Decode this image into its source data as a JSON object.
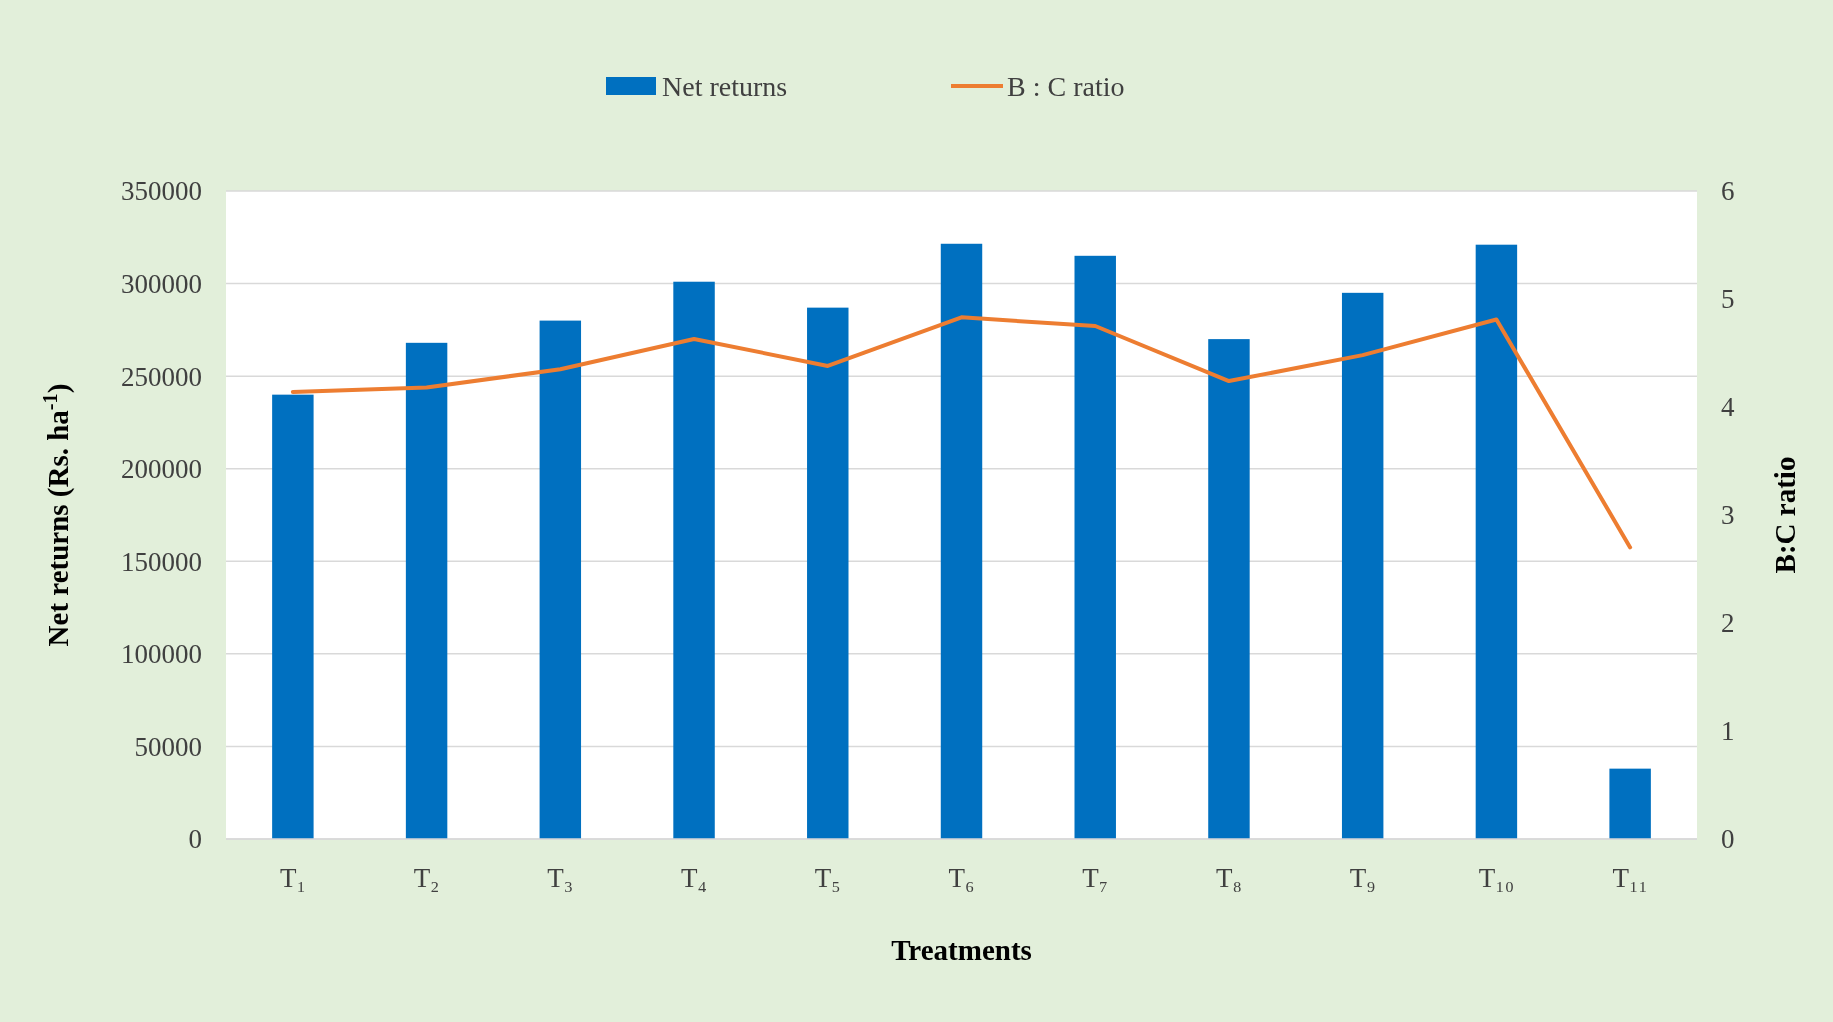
{
  "chart_data": {
    "type": "bar",
    "categories": [
      "T₁",
      "T₂",
      "T₃",
      "T₄",
      "T₅",
      "T₆",
      "T₇",
      "T₈",
      "T₉",
      "T₁₀",
      "T₁₁"
    ],
    "series": [
      {
        "name": "Net returns",
        "color": "#0070c0",
        "values": [
          240000,
          268000,
          280000,
          301000,
          287000,
          321500,
          315000,
          270000,
          295000,
          321000,
          38000
        ]
      },
      {
        "name": "B : C ratio",
        "type": "line",
        "axis": "y2",
        "color": "#ed7d31",
        "values": [
          4.14,
          4.18,
          4.35,
          4.63,
          4.38,
          4.83,
          4.75,
          4.24,
          4.48,
          4.81,
          2.7
        ]
      }
    ],
    "xlabel": "Treatments",
    "ylabel": "Net returns (Rs. ha$^{-1}$)",
    "y2label": "B:C ratio",
    "ylim": [
      0,
      350000
    ],
    "yticks": [
      0,
      50000,
      100000,
      150000,
      200000,
      250000,
      300000,
      350000
    ],
    "y2lim": [
      0,
      6
    ],
    "y2ticks": [
      0,
      1,
      2,
      3,
      4,
      5,
      6
    ],
    "grid": "y",
    "legend": "top"
  }
}
